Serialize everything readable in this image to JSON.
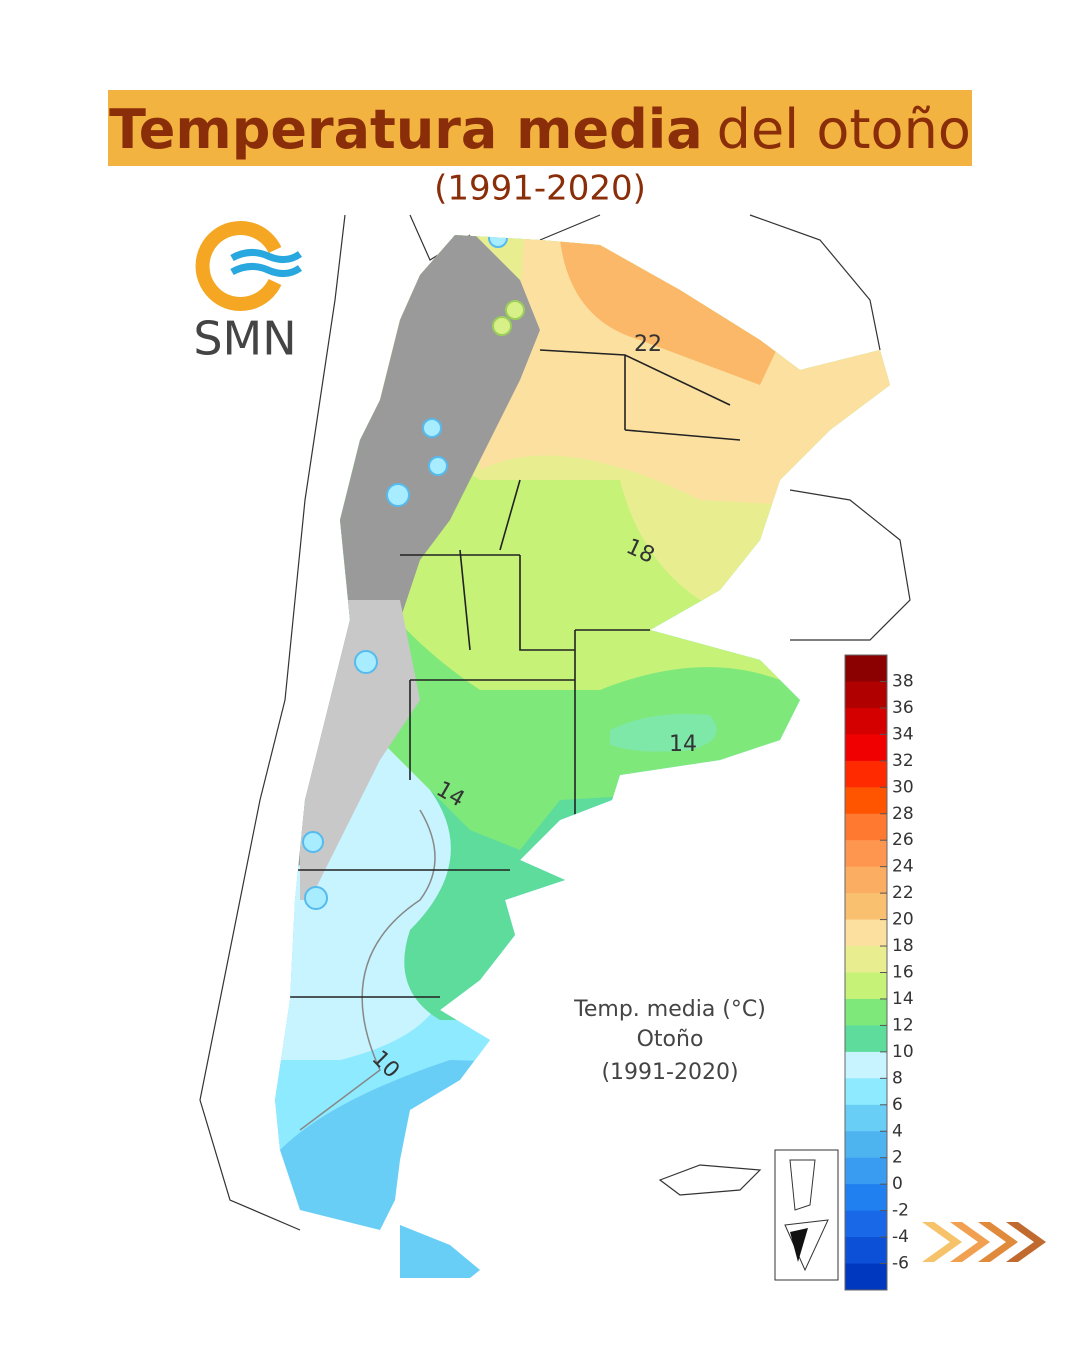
{
  "header": {
    "title_bold": "Temperatura media",
    "title_rest": "del otoño",
    "subtitle": "(1991-2020)"
  },
  "logo": {
    "text": "SMN"
  },
  "map": {
    "legend_title": "Temp. media (°C)",
    "legend_season": "Otoño",
    "legend_period": "(1991-2020)",
    "contour_labels": [
      22,
      18,
      14,
      14,
      10
    ],
    "colorbar": {
      "ticks": [
        38,
        36,
        34,
        32,
        30,
        28,
        26,
        24,
        22,
        20,
        18,
        16,
        14,
        12,
        10,
        8,
        6,
        4,
        2,
        0,
        -2,
        -4,
        -6
      ],
      "colors": [
        "#8b0000",
        "#b00000",
        "#d40000",
        "#f00000",
        "#ff2a00",
        "#ff5500",
        "#ff7a30",
        "#ff9650",
        "#fbae62",
        "#f9c070",
        "#fbe0a0",
        "#e8ee90",
        "#c6f278",
        "#7ee87a",
        "#5edc9c",
        "#c8f4ff",
        "#8eeaff",
        "#68cef5",
        "#4eb4f0",
        "#3a9cf0",
        "#2080f0",
        "#1868e8",
        "#0c50d8",
        "#0038c0"
      ]
    }
  }
}
